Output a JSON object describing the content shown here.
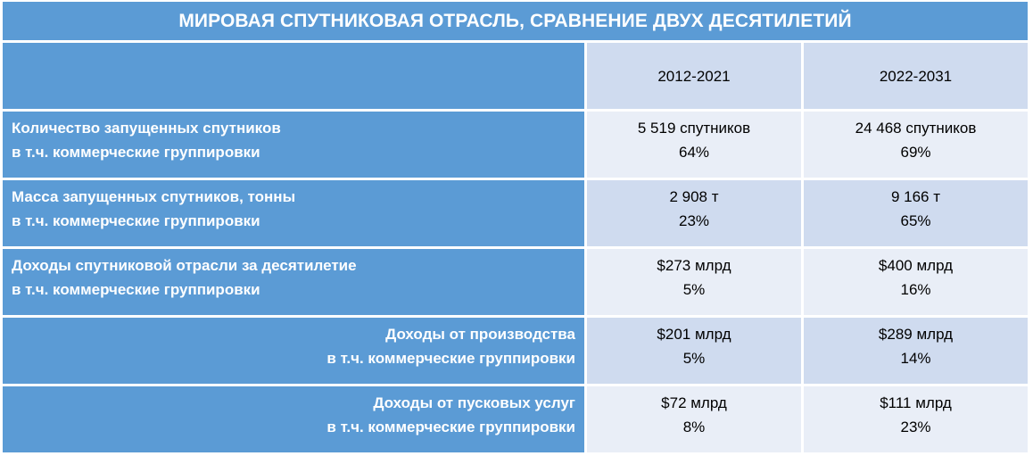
{
  "title": "МИРОВАЯ СПУТНИКОВАЯ ОТРАСЛЬ, СРАВНЕНИЕ ДВУХ ДЕСЯТИЛЕТИЙ",
  "columns": [
    "2012-2021",
    "2022-2031"
  ],
  "rows": [
    {
      "label": "Количество запущенных спутников",
      "sublabel": "в т.ч. коммерческие группировки",
      "col1": {
        "main": "5 519 спутников",
        "sub": "64%"
      },
      "col2": {
        "main": "24 468 спутников",
        "sub": "69%"
      }
    },
    {
      "label": "Масса запущенных спутников, тонны",
      "sublabel": "в т.ч. коммерческие группировки",
      "col1": {
        "main": "2 908 т",
        "sub": "23%"
      },
      "col2": {
        "main": "9 166 т",
        "sub": "65%"
      }
    },
    {
      "label": "Доходы спутниковой отрасли за десятилетие",
      "sublabel": "в т.ч. коммерческие группировки",
      "col1": {
        "main": "$273 млрд",
        "sub": "5%"
      },
      "col2": {
        "main": "$400 млрд",
        "sub": "16%"
      }
    },
    {
      "label": "Доходы от производства",
      "sublabel": "в т.ч. коммерческие группировки",
      "col1": {
        "main": "$201 млрд",
        "sub": "5%"
      },
      "col2": {
        "main": "$289 млрд",
        "sub": "14%"
      }
    },
    {
      "label": "Доходы от пусковых услуг",
      "sublabel": "в т.ч. коммерческие группировки",
      "col1": {
        "main": "$72 млрд",
        "sub": "8%"
      },
      "col2": {
        "main": "$111 млрд",
        "sub": "23%"
      }
    }
  ]
}
